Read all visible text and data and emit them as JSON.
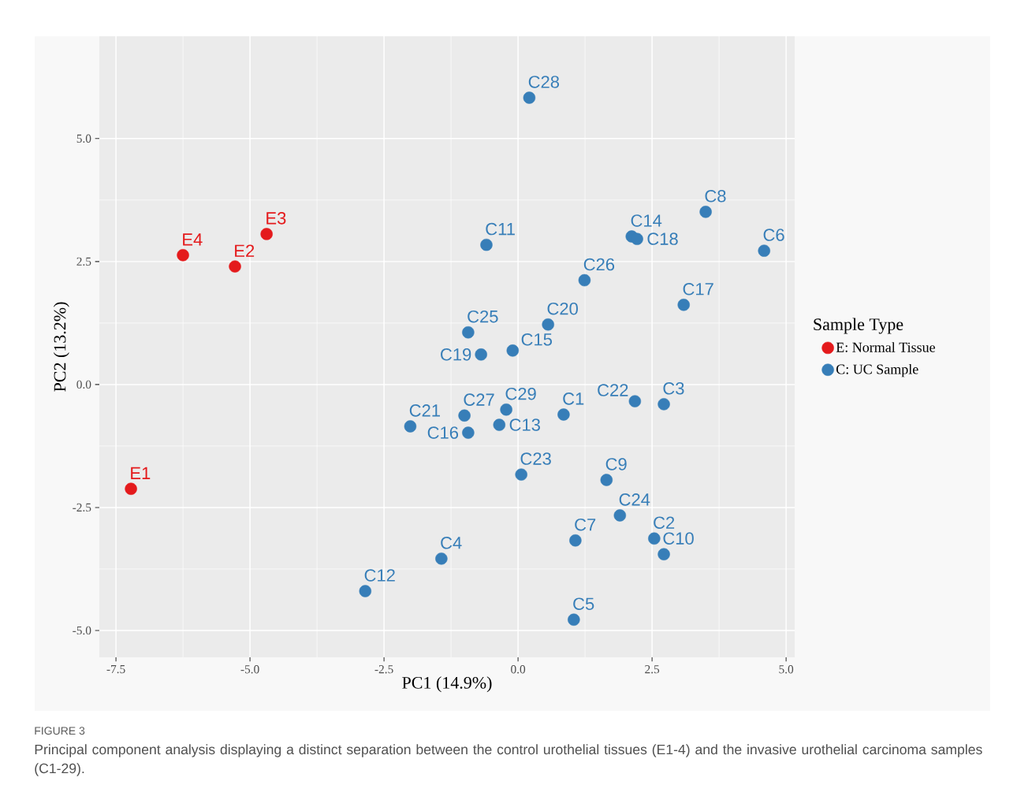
{
  "chart_data": {
    "type": "scatter",
    "xlabel": "PC1 (14.9%)",
    "ylabel": "PC2 (13.2%)",
    "legend_title": "Sample Type",
    "legend": "right",
    "grid": true,
    "marker": "circle",
    "xlim": [
      -7.81,
      5.16
    ],
    "ylim": [
      -5.545,
      7.08
    ],
    "xticks": [
      {
        "value": -7.5,
        "label": "-7.5"
      },
      {
        "value": -5,
        "label": "-5.0"
      },
      {
        "value": -2.5,
        "label": "-2.5"
      },
      {
        "value": 0,
        "label": "0.0"
      },
      {
        "value": 2.5,
        "label": "2.5"
      },
      {
        "value": 5,
        "label": "5.0"
      }
    ],
    "yticks": [
      {
        "value": -5,
        "label": "-5.0"
      },
      {
        "value": -2.5,
        "label": "-2.5"
      },
      {
        "value": 0,
        "label": "0.0"
      },
      {
        "value": 2.5,
        "label": "2.5"
      },
      {
        "value": 5,
        "label": "5.0"
      }
    ],
    "series": [
      {
        "name": "E: Normal Tissue",
        "color": "#e41a1c",
        "x": [
          -7.22,
          -5.28,
          -4.69,
          -6.25
        ],
        "values": [
          -2.12,
          2.4,
          3.06,
          2.63
        ]
      },
      {
        "name": "C: UC Sample",
        "color": "#377eb8",
        "x": [
          0.85,
          2.54,
          2.72,
          -1.43,
          1.04,
          4.59,
          1.07,
          3.5,
          1.65,
          2.72,
          -0.59,
          -2.85,
          -0.35,
          2.12,
          -0.1,
          -0.93,
          3.09,
          2.22,
          -0.69,
          0.56,
          -2.01,
          2.18,
          0.06,
          1.9,
          -0.93,
          1.24,
          -1.0,
          0.21,
          -0.22
        ],
        "values": [
          -0.61,
          -3.13,
          -0.4,
          -3.54,
          -4.78,
          2.72,
          -3.17,
          3.51,
          -1.94,
          -3.45,
          2.84,
          -4.2,
          -0.82,
          3.01,
          0.69,
          -0.98,
          1.62,
          2.96,
          0.61,
          1.22,
          -0.85,
          -0.34,
          -1.83,
          -2.66,
          1.06,
          2.12,
          -0.63,
          5.83,
          -0.51
        ]
      }
    ],
    "annotations": [
      {
        "text": "E1",
        "x": -7.22,
        "y": -2.12
      },
      {
        "text": "E2",
        "x": -5.28,
        "y": 2.4
      },
      {
        "text": "E3",
        "x": -4.69,
        "y": 3.06
      },
      {
        "text": "E4",
        "x": -6.25,
        "y": 2.63
      },
      {
        "text": "C1",
        "x": 0.85,
        "y": -0.61
      },
      {
        "text": "C2",
        "x": 2.54,
        "y": -3.13
      },
      {
        "text": "C3",
        "x": 2.72,
        "y": -0.4
      },
      {
        "text": "C4",
        "x": -1.43,
        "y": -3.54
      },
      {
        "text": "C5",
        "x": 1.04,
        "y": -4.78
      },
      {
        "text": "C6",
        "x": 4.59,
        "y": 2.72
      },
      {
        "text": "C7",
        "x": 1.07,
        "y": -3.17
      },
      {
        "text": "C8",
        "x": 3.5,
        "y": 3.51
      },
      {
        "text": "C9",
        "x": 1.65,
        "y": -1.94
      },
      {
        "text": "C10",
        "x": 2.72,
        "y": -3.45
      },
      {
        "text": "C11",
        "x": -0.59,
        "y": 2.84
      },
      {
        "text": "C12",
        "x": -2.85,
        "y": -4.2
      },
      {
        "text": "C13",
        "x": -0.35,
        "y": -0.82
      },
      {
        "text": "C14",
        "x": 2.12,
        "y": 3.01
      },
      {
        "text": "C15",
        "x": -0.1,
        "y": 0.69
      },
      {
        "text": "C16",
        "x": -0.93,
        "y": -0.98
      },
      {
        "text": "C17",
        "x": 3.09,
        "y": 1.62
      },
      {
        "text": "C18",
        "x": 2.22,
        "y": 2.96
      },
      {
        "text": "C19",
        "x": -0.69,
        "y": 0.61
      },
      {
        "text": "C20",
        "x": 0.56,
        "y": 1.22
      },
      {
        "text": "C21",
        "x": -2.01,
        "y": -0.85
      },
      {
        "text": "C22",
        "x": 2.18,
        "y": -0.34
      },
      {
        "text": "C23",
        "x": 0.06,
        "y": -1.83
      },
      {
        "text": "C24",
        "x": 1.9,
        "y": -2.66
      },
      {
        "text": "C25",
        "x": -0.93,
        "y": 1.06
      },
      {
        "text": "C26",
        "x": 1.24,
        "y": 2.12
      },
      {
        "text": "C27",
        "x": -1.0,
        "y": -0.63
      },
      {
        "text": "C28",
        "x": 0.21,
        "y": 5.83
      },
      {
        "text": "C29",
        "x": -0.22,
        "y": -0.51
      },
      "FIGURE 3",
      "Principal component analysis displaying a distinct separation between the control urothelial tissues (E1-4) and the invasive urothelial carcinoma samples (C1-29)."
    ]
  }
}
